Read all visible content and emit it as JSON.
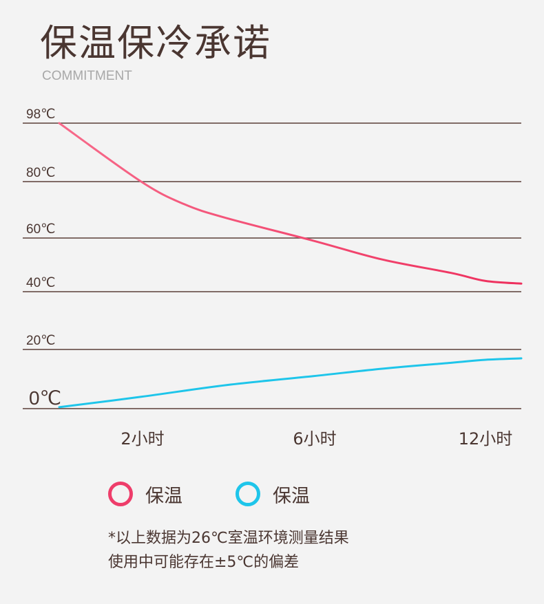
{
  "header": {
    "title": "保温保冷承诺",
    "subtitle": "COMMITMENT"
  },
  "chart_data": {
    "type": "line",
    "title": "",
    "xlabel": "",
    "ylabel": "",
    "y_ticks": [
      {
        "value": 98,
        "label": "98℃"
      },
      {
        "value": 80,
        "label": "80℃"
      },
      {
        "value": 60,
        "label": "60℃"
      },
      {
        "value": 40,
        "label": "40℃"
      },
      {
        "value": 20,
        "label": "20℃"
      },
      {
        "value": 0,
        "label": "0℃"
      }
    ],
    "x_ticks": [
      {
        "value": 2,
        "label": "2小时"
      },
      {
        "value": 6,
        "label": "6小时"
      },
      {
        "value": 12,
        "label": "12小时"
      }
    ],
    "xlim": [
      0,
      13
    ],
    "ylim": [
      0,
      98
    ],
    "grid": true,
    "series": [
      {
        "name": "保温",
        "color": "#ee2f5d",
        "color_start": "#f76a8a",
        "x": [
          1,
          2,
          3,
          4,
          6,
          8,
          10,
          12,
          13
        ],
        "y": [
          98,
          80,
          72,
          67,
          59,
          52,
          47,
          44,
          43
        ]
      },
      {
        "name": "保温",
        "color": "#1ec5ea",
        "color_start": "#1ec5ea",
        "x": [
          1,
          2,
          4,
          6,
          8,
          10,
          12,
          13
        ],
        "y": [
          0.5,
          4,
          8,
          11,
          13.5,
          15.5,
          16.5,
          17
        ]
      }
    ]
  },
  "legend": {
    "items": [
      {
        "label": "保温",
        "color": "#ee3d6a"
      },
      {
        "label": "保温",
        "color": "#1ec5ea"
      }
    ]
  },
  "footnote": {
    "line1": "*以上数据为26℃室温环境测量结果",
    "line2": "使用中可能存在±5℃的偏差"
  }
}
